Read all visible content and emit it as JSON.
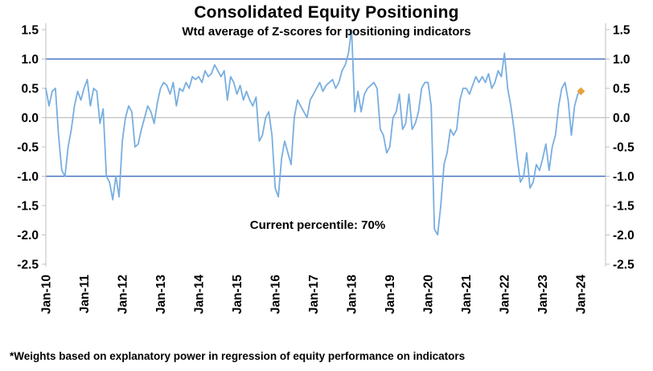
{
  "chart_data": {
    "type": "line",
    "title": "Consolidated Equity Positioning",
    "subtitle": "Wtd average of Z-scores for positioning indicators",
    "footnote": "*Weights based on explanatory power in regression of equity performance on indicators",
    "annotation": {
      "text": "Current percentile: 70%",
      "near_x": "Jan-16",
      "near_y": -1.85
    },
    "ylim": [
      -2.5,
      1.5
    ],
    "y_ticks": [
      1.5,
      1.0,
      0.5,
      0.0,
      -0.5,
      -1.0,
      -1.5,
      -2.0,
      -2.5
    ],
    "y_axis_sides": [
      "left",
      "right"
    ],
    "grid": "off",
    "x_tick_labels": [
      "Jan-10",
      "Jan-11",
      "Jan-12",
      "Jan-13",
      "Jan-14",
      "Jan-15",
      "Jan-16",
      "Jan-17",
      "Jan-18",
      "Jan-19",
      "Jan-20",
      "Jan-21",
      "Jan-22",
      "Jan-23",
      "Jan-24"
    ],
    "x_frequency": "monthly",
    "reference_lines": [
      {
        "y": 1.0,
        "color": "#4472C4",
        "width": 1.6,
        "name": "upper-band"
      },
      {
        "y": -1.0,
        "color": "#4472C4",
        "width": 1.6,
        "name": "lower-band"
      },
      {
        "y": 0.0,
        "color": "#BFBFBF",
        "width": 1.2,
        "name": "zero-line"
      }
    ],
    "axis_color": "#BFBFBF",
    "text_color": "#000000",
    "series": [
      {
        "name": "Wtd average Z-score",
        "color": "#78AEE0",
        "width": 1.8,
        "start": "Jan-10",
        "values": [
          0.5,
          0.2,
          0.45,
          0.5,
          -0.3,
          -0.9,
          -1.0,
          -0.5,
          -0.2,
          0.2,
          0.45,
          0.3,
          0.5,
          0.65,
          0.2,
          0.5,
          0.45,
          -0.1,
          0.15,
          -1.0,
          -1.1,
          -1.4,
          -1.0,
          -1.35,
          -0.4,
          0.0,
          0.2,
          0.1,
          -0.5,
          -0.45,
          -0.2,
          0.0,
          0.2,
          0.1,
          -0.1,
          0.25,
          0.5,
          0.6,
          0.55,
          0.4,
          0.6,
          0.2,
          0.5,
          0.45,
          0.6,
          0.5,
          0.7,
          0.65,
          0.7,
          0.6,
          0.8,
          0.7,
          0.75,
          0.9,
          0.8,
          0.7,
          0.8,
          0.3,
          0.7,
          0.6,
          0.4,
          0.55,
          0.3,
          0.45,
          0.3,
          0.2,
          0.35,
          -0.4,
          -0.3,
          0.0,
          0.1,
          -0.3,
          -1.2,
          -1.35,
          -0.7,
          -0.4,
          -0.6,
          -0.8,
          0.0,
          0.3,
          0.2,
          0.1,
          0.0,
          0.3,
          0.4,
          0.5,
          0.6,
          0.45,
          0.55,
          0.6,
          0.65,
          0.5,
          0.6,
          0.8,
          0.9,
          1.1,
          1.5,
          0.1,
          0.45,
          0.1,
          0.4,
          0.5,
          0.55,
          0.6,
          0.5,
          -0.2,
          -0.3,
          -0.6,
          -0.5,
          0.0,
          0.1,
          0.4,
          -0.2,
          -0.1,
          0.4,
          -0.2,
          -0.1,
          0.1,
          0.5,
          0.6,
          0.6,
          0.2,
          -1.9,
          -2.0,
          -1.5,
          -0.8,
          -0.6,
          -0.2,
          -0.3,
          -0.2,
          0.3,
          0.5,
          0.5,
          0.4,
          0.55,
          0.7,
          0.6,
          0.7,
          0.6,
          0.75,
          0.5,
          0.6,
          0.8,
          0.7,
          1.1,
          0.5,
          0.2,
          -0.2,
          -0.7,
          -1.1,
          -1.0,
          -0.6,
          -1.2,
          -1.1,
          -0.8,
          -0.9,
          -0.7,
          -0.45,
          -0.9,
          -0.5,
          -0.3,
          0.2,
          0.5,
          0.6,
          0.3,
          -0.3,
          0.2,
          0.4,
          0.45
        ]
      }
    ],
    "last_point_marker": {
      "shape": "diamond",
      "color": "#E6A23C",
      "value": 0.45,
      "label": "Jan-24"
    }
  }
}
